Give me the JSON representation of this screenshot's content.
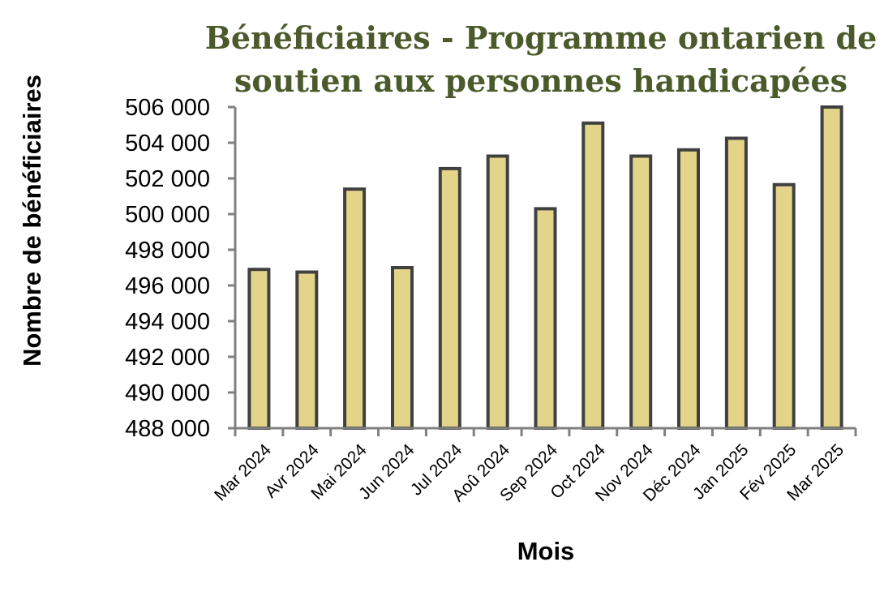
{
  "chart_data": {
    "type": "bar",
    "title": [
      "Bénéficiaires - Programme ontarien de",
      "soutien aux personnes handicapées"
    ],
    "xlabel": "Mois",
    "ylabel": "Nombre de bénéficiaires",
    "categories": [
      "Mar 2024",
      "Avr 2024",
      "Mai 2024",
      "Jun 2024",
      "Jul 2024",
      "Aoû 2024",
      "Sep 2024",
      "Oct 2024",
      "Nov 2024",
      "Déc 2024",
      "Jan 2025",
      "Fév 2025",
      "Mar 2025"
    ],
    "values": [
      496900,
      496750,
      501400,
      497000,
      502550,
      503250,
      500300,
      505100,
      503250,
      503600,
      504250,
      501650,
      506000
    ],
    "ylim": [
      488000,
      506000
    ],
    "yticks": [
      488000,
      490000,
      492000,
      494000,
      496000,
      498000,
      500000,
      502000,
      504000,
      506000
    ],
    "ytick_labels": [
      "488 000",
      "490 000",
      "492 000",
      "494 000",
      "496 000",
      "498 000",
      "500 000",
      "502 000",
      "504 000",
      "506 000"
    ],
    "grid": false,
    "legend": "none",
    "colors": {
      "bar_fill": "#e4d48a",
      "bar_stroke": "#404040",
      "axis": "#808080",
      "title": "#4a5a2a"
    }
  }
}
